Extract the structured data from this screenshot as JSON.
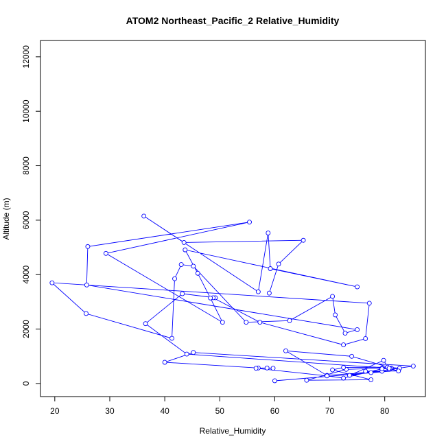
{
  "chart_data": {
    "type": "line",
    "title": "ATOM2 Northeast_Pacific_2 Relative_Humidity",
    "xlabel": "Relative_Humidity",
    "ylabel": "Altitude (m)",
    "xlim": [
      17.4,
      87.4
    ],
    "ylim": [
      -480,
      12600
    ],
    "xticks": [
      20,
      30,
      40,
      50,
      60,
      70,
      80
    ],
    "yticks": [
      0,
      2000,
      4000,
      6000,
      8000,
      10000,
      12000
    ],
    "grid": false,
    "legend": "none",
    "line_color": "#0000ff",
    "markers": "open-circle",
    "series": [
      {
        "x": [
          60.0,
          82.5,
          79.5,
          73.0,
          65.8,
          77.5,
          70.5,
          72.5,
          80.5,
          82.7,
          81.2,
          74.0,
          62.0,
          69.5,
          79.5,
          77.5,
          76.5,
          82.5,
          81.0,
          80.8,
          79.8,
          73.6,
          85.2,
          45.2,
          40.0,
          57.0,
          59.7,
          58.6,
          56.6,
          69.5,
          72.5,
          79.5,
          80.8,
          44.0,
          36.5,
          43.2,
          49.2,
          48.8,
          57.3,
          72.5,
          76.5,
          77.2,
          19.5,
          25.7,
          41.3,
          41.8,
          43.0,
          45.2,
          54.8,
          62.7,
          70.5,
          71.0,
          72.8,
          75.0,
          25.8,
          26.0,
          55.4,
          29.3,
          50.5,
          48.3,
          46.0,
          43.7,
          75.0,
          59.2,
          58.8,
          57.0,
          36.2,
          43.5,
          65.2,
          60.7,
          59.0
        ],
        "y": [
          100,
          480,
          560,
          520,
          120,
          140,
          500,
          590,
          600,
          560,
          570,
          1000,
          1200,
          300,
          450,
          400,
          450,
          460,
          550,
          520,
          850,
          300,
          640,
          1140,
          780,
          570,
          560,
          570,
          560,
          280,
          200,
          540,
          560,
          1080,
          2200,
          3300,
          3150,
          3150,
          2250,
          1420,
          1650,
          2950,
          3700,
          2570,
          1660,
          3850,
          4370,
          4310,
          2250,
          2310,
          3200,
          2520,
          1850,
          1980,
          3620,
          5030,
          5930,
          4780,
          2250,
          3140,
          4050,
          4910,
          3550,
          4220,
          5530,
          3370,
          6150,
          5180,
          5260,
          4390,
          3320
        ]
      }
    ]
  }
}
